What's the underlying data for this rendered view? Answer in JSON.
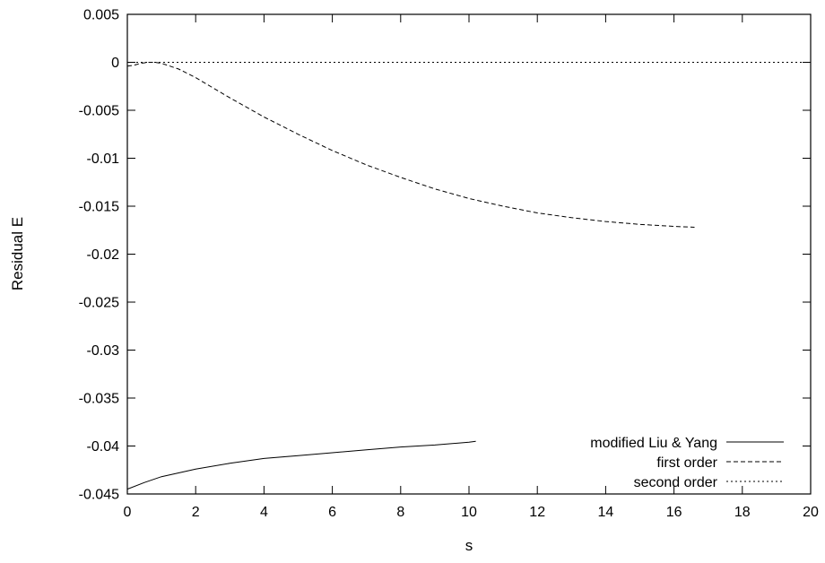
{
  "chart_data": {
    "type": "line",
    "xlabel": "s",
    "ylabel": "Residual E",
    "xlim": [
      0,
      20
    ],
    "ylim": [
      -0.045,
      0.005
    ],
    "xticks": [
      0,
      2,
      4,
      6,
      8,
      10,
      12,
      14,
      16,
      18,
      20
    ],
    "yticks": [
      0.005,
      0,
      -0.005,
      -0.01,
      -0.015,
      -0.02,
      -0.025,
      -0.03,
      -0.035,
      -0.04,
      -0.045
    ],
    "xtick_labels": [
      "0",
      "2",
      "4",
      "6",
      "8",
      "10",
      "12",
      "14",
      "16",
      "18",
      "20"
    ],
    "ytick_labels": [
      "0.005",
      "0",
      "-0.005",
      "-0.01",
      "-0.015",
      "-0.02",
      "-0.025",
      "-0.03",
      "-0.035",
      "-0.04",
      "-0.045"
    ],
    "grid": false,
    "legend_position": "bottom-right",
    "series": [
      {
        "name": "modified Liu & Yang",
        "style": "solid",
        "x": [
          0,
          0.5,
          1,
          1.5,
          2,
          3,
          4,
          5,
          6,
          7,
          8,
          9,
          10,
          10.2
        ],
        "y": [
          -0.0445,
          -0.0438,
          -0.0432,
          -0.0428,
          -0.0424,
          -0.0418,
          -0.0413,
          -0.041,
          -0.0407,
          -0.0404,
          -0.0401,
          -0.0399,
          -0.0396,
          -0.0395
        ]
      },
      {
        "name": "first order",
        "style": "dashed",
        "x": [
          0,
          0.2,
          0.4,
          0.6,
          0.8,
          1,
          1.5,
          2,
          3,
          4,
          5,
          6,
          7,
          8,
          9,
          10,
          11,
          12,
          13,
          14,
          15,
          16,
          16.6
        ],
        "y": [
          -0.0004,
          -0.0003,
          -0.0001,
          0.0,
          0.0,
          -0.0001,
          -0.0007,
          -0.0016,
          -0.0037,
          -0.0057,
          -0.0075,
          -0.0092,
          -0.0107,
          -0.012,
          -0.0132,
          -0.0142,
          -0.015,
          -0.0157,
          -0.0162,
          -0.0166,
          -0.0169,
          -0.0171,
          -0.0172
        ]
      },
      {
        "name": "second order",
        "style": "dotted",
        "x": [
          0,
          20
        ],
        "y": [
          0,
          0
        ]
      }
    ]
  }
}
